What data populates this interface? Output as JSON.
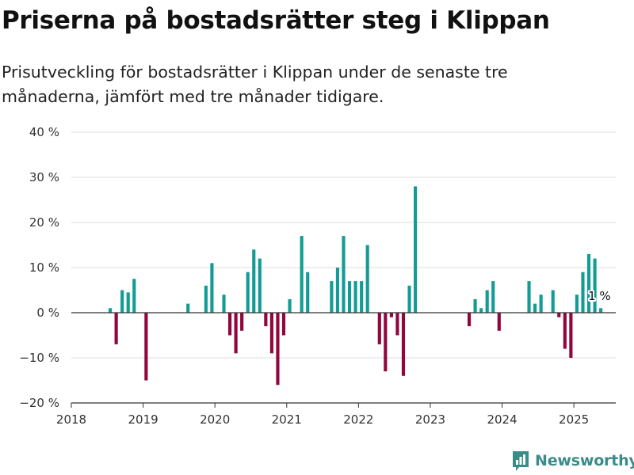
{
  "header": {
    "title": "Priserna på bostadsrätter steg i Klippan",
    "subtitle": "Prisutveckling för bostadsrätter i Klippan under de senaste tre månaderna, jämfört med tre månader tidigare."
  },
  "brand": {
    "name": "Newsworthy",
    "icon": "newsworthy-logo-icon",
    "color": "#3a8c88"
  },
  "chart_data": {
    "type": "bar",
    "title": "Priserna på bostadsrätter steg i Klippan",
    "subtitle": "Prisutveckling för bostadsrätter i Klippan under de senaste tre månaderna, jämfört med tre månader tidigare.",
    "xlabel": "",
    "ylabel": "",
    "x_axis": {
      "type": "date",
      "min": "2018-01",
      "max": "2025-08",
      "tick_labels": [
        "2018",
        "2019",
        "2020",
        "2021",
        "2022",
        "2023",
        "2024",
        "2025"
      ]
    },
    "y_axis": {
      "min": -20,
      "max": 40,
      "ticks": [
        -20,
        -10,
        0,
        10,
        20,
        30,
        40
      ],
      "tick_labels": [
        "−20 %",
        "−10 %",
        "0 %",
        "10 %",
        "20 %",
        "30 %",
        "40 %"
      ]
    },
    "grid": "horizontal",
    "colors": {
      "positive": "#139c96",
      "negative": "#92063d",
      "gridline": "#dddddd",
      "zero_line": "#333333"
    },
    "annotation": {
      "month": "2025-05",
      "label": "1 %"
    },
    "series": [
      {
        "values": [
          {
            "month": "2018-07",
            "value": 1
          },
          {
            "month": "2018-08",
            "value": -7
          },
          {
            "month": "2018-09",
            "value": 5
          },
          {
            "month": "2018-10",
            "value": 4.5
          },
          {
            "month": "2018-11",
            "value": 7.5
          },
          {
            "month": "2019-01",
            "value": -15
          },
          {
            "month": "2019-08",
            "value": 2
          },
          {
            "month": "2019-11",
            "value": 6
          },
          {
            "month": "2019-12",
            "value": 11
          },
          {
            "month": "2020-02",
            "value": 4
          },
          {
            "month": "2020-03",
            "value": -5
          },
          {
            "month": "2020-04",
            "value": -9
          },
          {
            "month": "2020-05",
            "value": -4
          },
          {
            "month": "2020-06",
            "value": 9
          },
          {
            "month": "2020-07",
            "value": 14
          },
          {
            "month": "2020-08",
            "value": 12
          },
          {
            "month": "2020-09",
            "value": -3
          },
          {
            "month": "2020-10",
            "value": -9
          },
          {
            "month": "2020-11",
            "value": -16
          },
          {
            "month": "2020-12",
            "value": -5
          },
          {
            "month": "2021-01",
            "value": 3
          },
          {
            "month": "2021-03",
            "value": 17
          },
          {
            "month": "2021-04",
            "value": 9
          },
          {
            "month": "2021-08",
            "value": 7
          },
          {
            "month": "2021-09",
            "value": 10
          },
          {
            "month": "2021-10",
            "value": 17
          },
          {
            "month": "2021-11",
            "value": 7
          },
          {
            "month": "2021-12",
            "value": 7
          },
          {
            "month": "2022-01",
            "value": 7
          },
          {
            "month": "2022-02",
            "value": 15
          },
          {
            "month": "2022-04",
            "value": -7
          },
          {
            "month": "2022-05",
            "value": -13
          },
          {
            "month": "2022-06",
            "value": -1
          },
          {
            "month": "2022-07",
            "value": -5
          },
          {
            "month": "2022-08",
            "value": -14
          },
          {
            "month": "2022-09",
            "value": 6
          },
          {
            "month": "2022-10",
            "value": 28
          },
          {
            "month": "2023-07",
            "value": -3
          },
          {
            "month": "2023-08",
            "value": 3
          },
          {
            "month": "2023-09",
            "value": 1
          },
          {
            "month": "2023-10",
            "value": 5
          },
          {
            "month": "2023-11",
            "value": 7
          },
          {
            "month": "2023-12",
            "value": -4
          },
          {
            "month": "2024-05",
            "value": 7
          },
          {
            "month": "2024-06",
            "value": 2
          },
          {
            "month": "2024-07",
            "value": 4
          },
          {
            "month": "2024-09",
            "value": 5
          },
          {
            "month": "2024-10",
            "value": -1
          },
          {
            "month": "2024-11",
            "value": -8
          },
          {
            "month": "2024-12",
            "value": -10
          },
          {
            "month": "2025-01",
            "value": 4
          },
          {
            "month": "2025-02",
            "value": 9
          },
          {
            "month": "2025-03",
            "value": 13
          },
          {
            "month": "2025-04",
            "value": 12
          },
          {
            "month": "2025-05",
            "value": 1
          }
        ]
      }
    ]
  }
}
